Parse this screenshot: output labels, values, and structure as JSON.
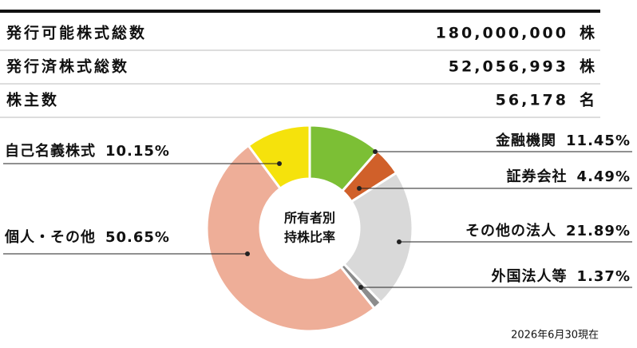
{
  "table": {
    "rows": [
      [
        "発行可能株式総数",
        "180,000,000",
        "株"
      ],
      [
        "発行済株式総数",
        "52,056,993",
        "株"
      ],
      [
        "株主数",
        "56,178",
        "名"
      ]
    ]
  },
  "chart_data": {
    "type": "donut",
    "center_label": [
      "所有者別",
      "持株比率"
    ],
    "categories": [
      "金融機関",
      "証券会社",
      "その他の法人",
      "外国法人等",
      "個人・その他",
      "自己名義株式"
    ],
    "values": [
      11.45,
      4.49,
      21.89,
      1.37,
      50.65,
      10.15
    ],
    "value_labels": [
      "11.45%",
      "4.49%",
      "21.89%",
      "1.37%",
      "50.65%",
      "10.15%"
    ],
    "colors": [
      "#7cbf35",
      "#d0602a",
      "#d9d9d9",
      "#8c8c8c",
      "#eeae98",
      "#f5e20c"
    ],
    "note": "2026年6月30現在"
  }
}
